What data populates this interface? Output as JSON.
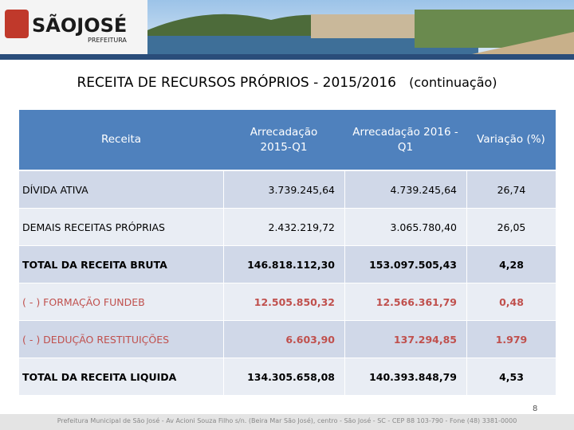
{
  "header": {
    "logo_title": "SÃOJOSÉ",
    "logo_subtitle": "PREFEITURA"
  },
  "title": "RECEITA DE RECURSOS PRÓPRIOS  -  2015/2016",
  "title_suffix": "(continuação)",
  "table": {
    "columns": [
      "Receita",
      "Arrecadação 2015-Q1",
      "Arrecadação 2016 -Q1",
      "Variação (%)"
    ],
    "rows": [
      [
        "DÍVIDA ATIVA",
        "3.739.245,64",
        "4.739.245,64",
        "26,74"
      ],
      [
        "DEMAIS RECEITAS PRÓPRIAS",
        "2.432.219,72",
        "3.065.780,40",
        "26,05"
      ],
      [
        "TOTAL DA RECEITA BRUTA",
        "146.818.112,30",
        "153.097.505,43",
        "4,28"
      ],
      [
        "( - ) FORMAÇÃO FUNDEB",
        "12.505.850,32",
        "12.566.361,79",
        "0,48"
      ],
      [
        "( - ) DEDUÇÃO RESTITUIÇÕES",
        "6.603,90",
        "137.294,85",
        "1.979"
      ],
      [
        "TOTAL DA RECEITA LIQUIDA",
        "134.305.658,08",
        "140.393.848,79",
        "4,53"
      ]
    ]
  },
  "page_number": "8",
  "footer": "Prefeitura Municipal de São José - Av Acioni Souza Filho s/n. (Beira Mar São José), centro - São José - SC - CEP 88 103-790 - Fone (48) 3381-0000"
}
